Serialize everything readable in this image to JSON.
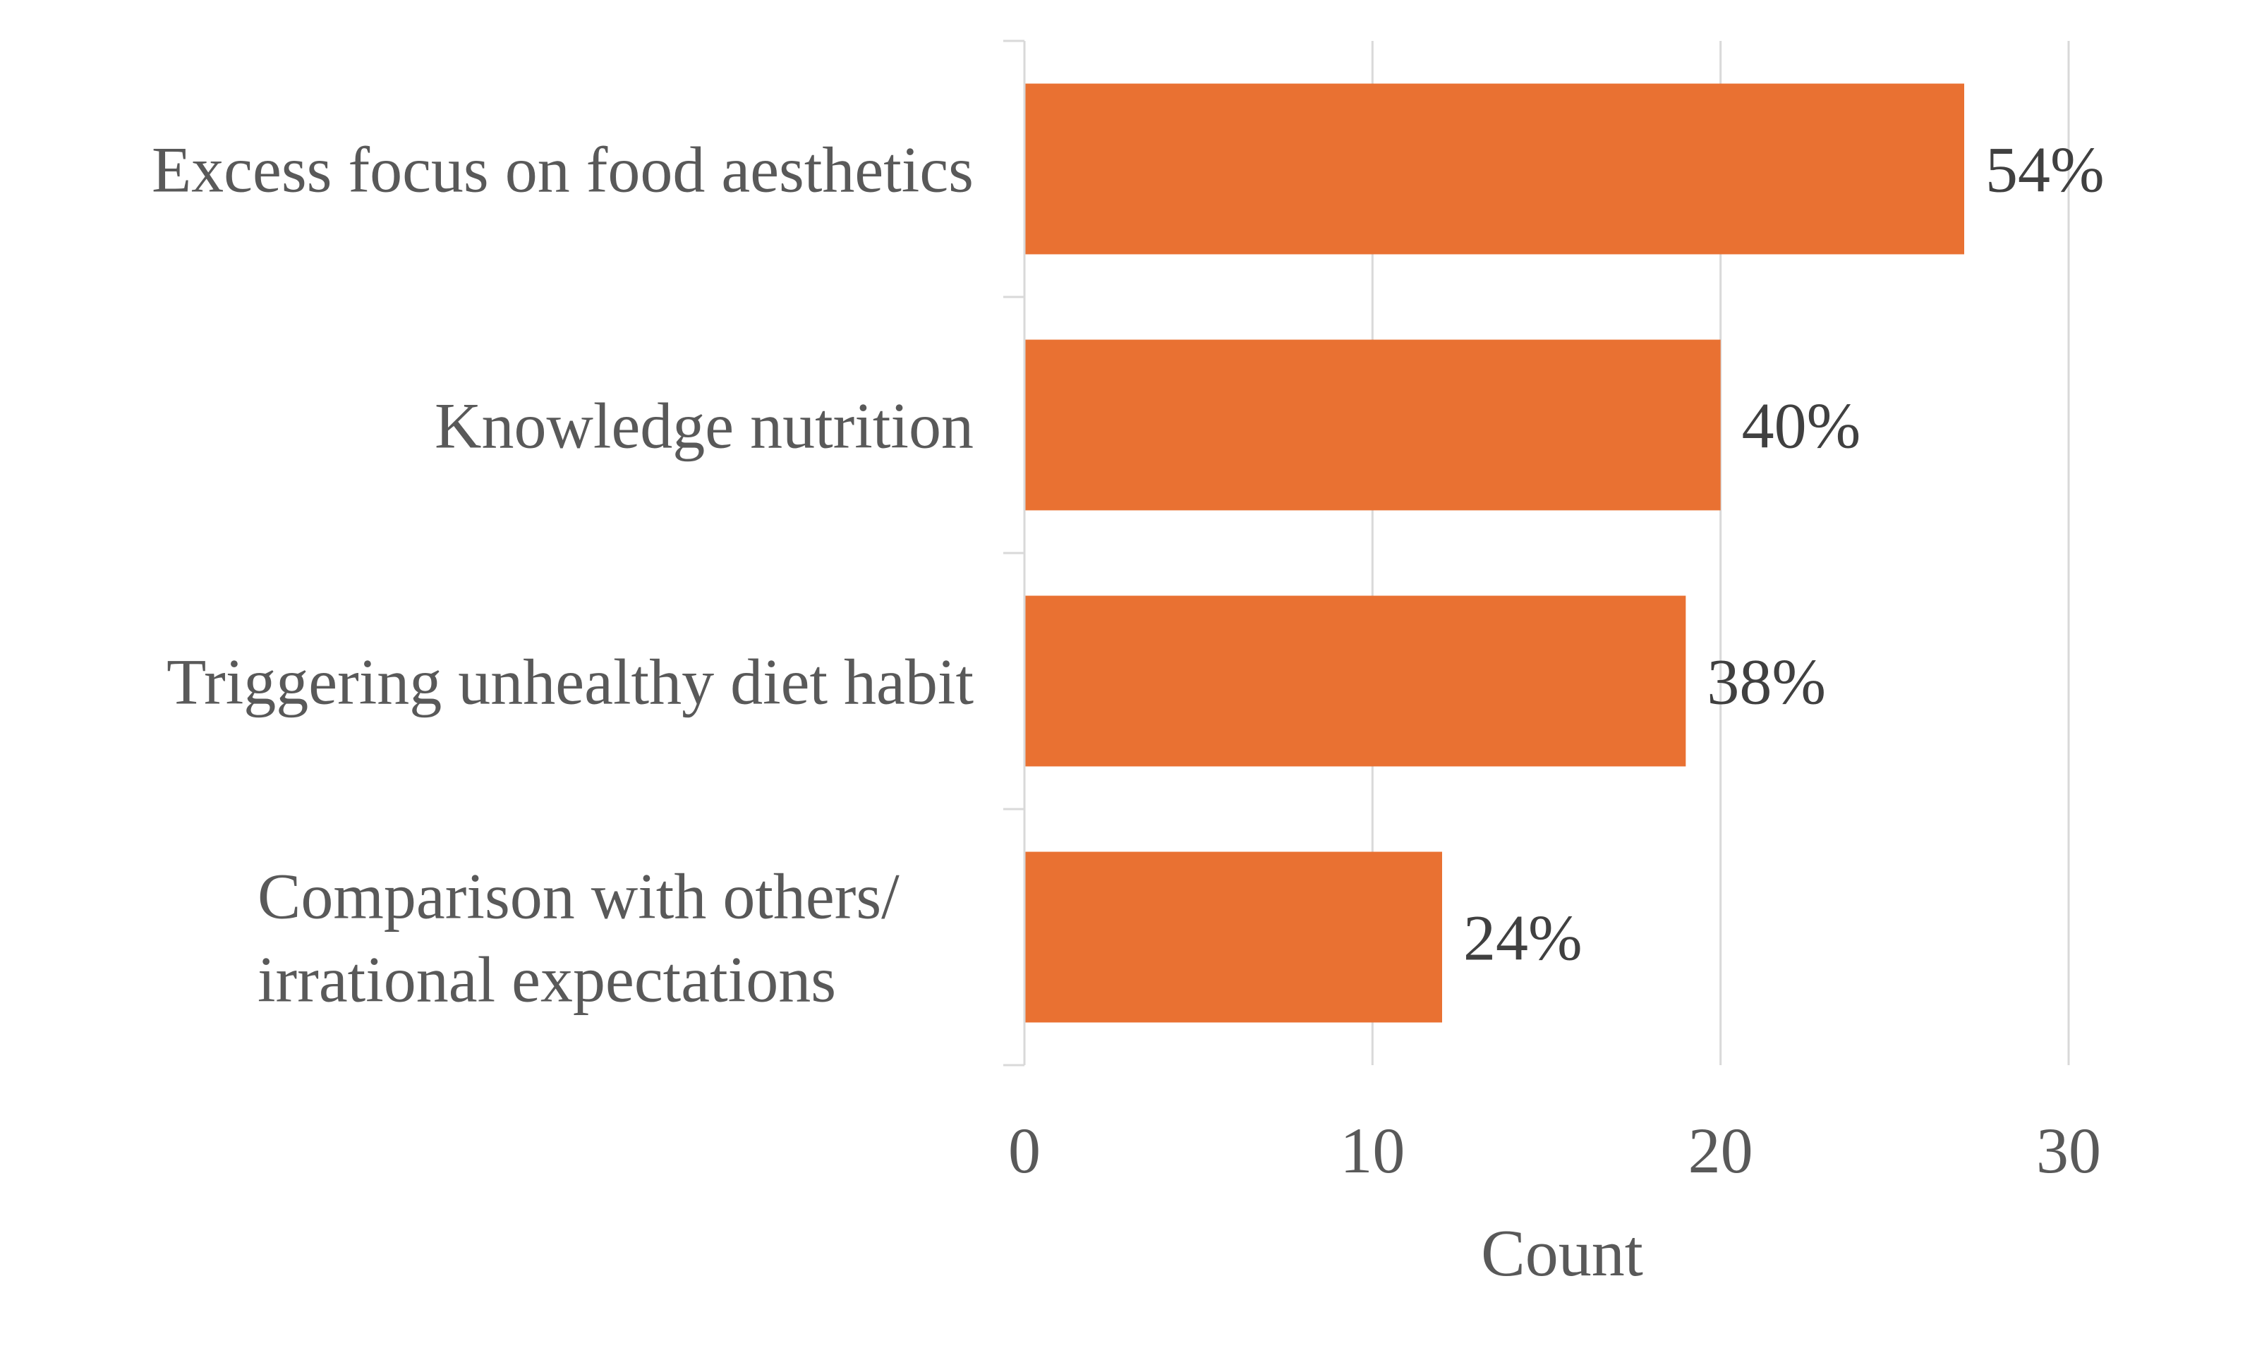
{
  "chart_data": {
    "type": "bar",
    "orientation": "horizontal",
    "categories": [
      [
        "Excess focus on food aesthetics"
      ],
      [
        "Knowledge nutrition"
      ],
      [
        "Triggering unhealthy diet habit"
      ],
      [
        "Comparison with others/",
        "irrational expectations"
      ]
    ],
    "values": [
      27,
      20,
      19,
      12
    ],
    "data_labels": [
      "54%",
      "40%",
      "38%",
      "24%"
    ],
    "xlabel": "Count",
    "xlim": [
      0,
      30
    ],
    "xticks": [
      "0",
      "10",
      "20",
      "30"
    ],
    "grid": true,
    "legend": "none",
    "bar_color": "#E97132",
    "grid_color": "#D9D9D9",
    "text_color": "#595959"
  }
}
